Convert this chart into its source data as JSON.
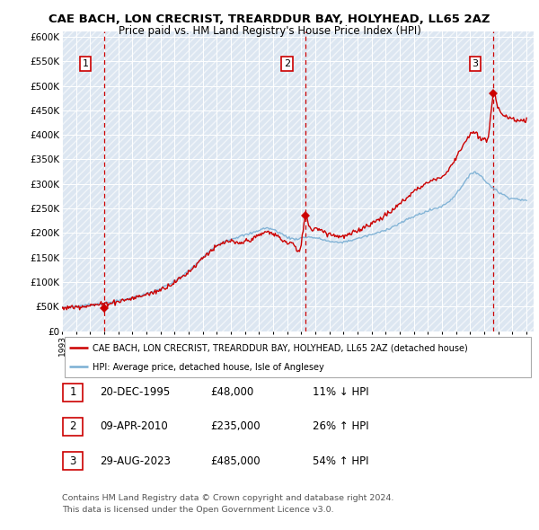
{
  "title": "CAE BACH, LON CRECRIST, TREARDDUR BAY, HOLYHEAD, LL65 2AZ",
  "subtitle": "Price paid vs. HM Land Registry's House Price Index (HPI)",
  "ylabel_ticks": [
    "£0",
    "£50K",
    "£100K",
    "£150K",
    "£200K",
    "£250K",
    "£300K",
    "£350K",
    "£400K",
    "£450K",
    "£500K",
    "£550K",
    "£600K"
  ],
  "ytick_values": [
    0,
    50000,
    100000,
    150000,
    200000,
    250000,
    300000,
    350000,
    400000,
    450000,
    500000,
    550000,
    600000
  ],
  "ylim": [
    0,
    610000
  ],
  "xlim": [
    1993.0,
    2026.5
  ],
  "sale_prices": [
    48000,
    235000,
    485000
  ],
  "sale_labels": [
    "1",
    "2",
    "3"
  ],
  "sale_year_floats": [
    1995.97,
    2010.27,
    2023.66
  ],
  "vline_color": "#cc0000",
  "sale_color": "#cc0000",
  "hpi_color": "#7aafd4",
  "legend_sale_label": "CAE BACH, LON CRECRIST, TREARDDUR BAY, HOLYHEAD, LL65 2AZ (detached house)",
  "legend_hpi_label": "HPI: Average price, detached house, Isle of Anglesey",
  "table_rows": [
    {
      "num": "1",
      "date": "20-DEC-1995",
      "price": "£48,000",
      "hpi": "11% ↓ HPI"
    },
    {
      "num": "2",
      "date": "09-APR-2010",
      "price": "£235,000",
      "hpi": "26% ↑ HPI"
    },
    {
      "num": "3",
      "date": "29-AUG-2023",
      "price": "£485,000",
      "hpi": "54% ↑ HPI"
    }
  ],
  "footer1": "Contains HM Land Registry data © Crown copyright and database right 2024.",
  "footer2": "This data is licensed under the Open Government Licence v3.0.",
  "bg_color": "#dce6f1",
  "grid_color": "#ffffff",
  "fig_width": 6.0,
  "fig_height": 5.9
}
